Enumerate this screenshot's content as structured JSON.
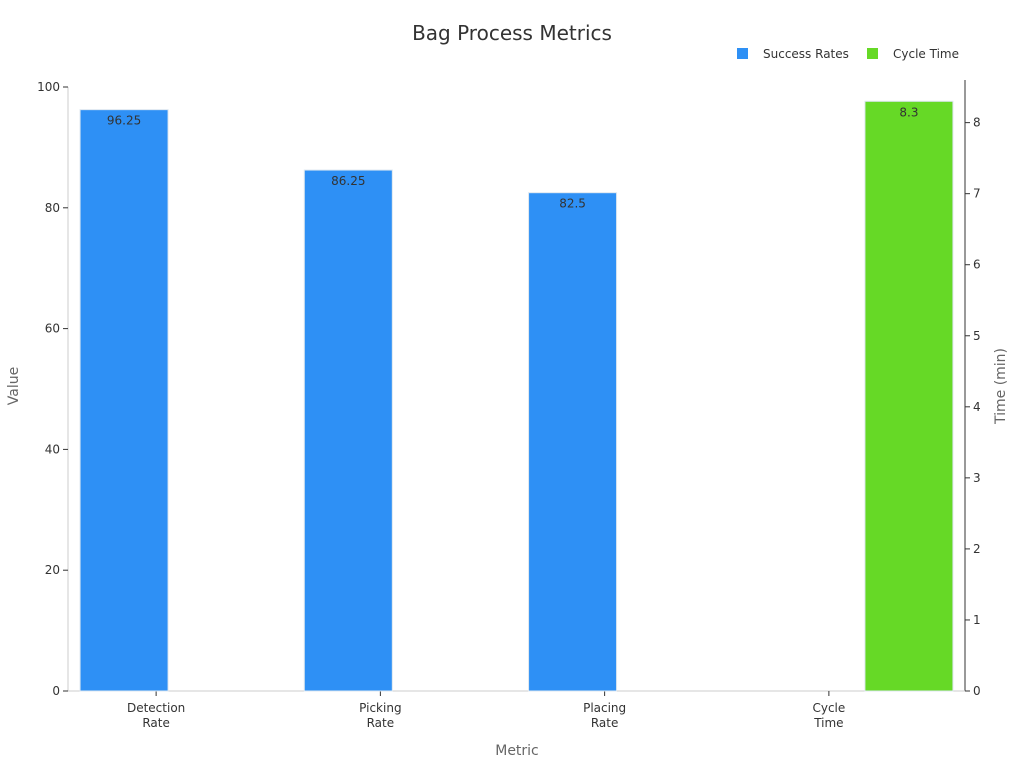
{
  "chart_data": {
    "type": "bar",
    "title": "Bag Process Metrics",
    "xlabel": "Metric",
    "ylabel": "Value",
    "y2label": "Time (min)",
    "ylim": [
      0,
      100
    ],
    "y2lim": [
      0,
      8.6
    ],
    "yticks": [
      0,
      20,
      40,
      60,
      80,
      100
    ],
    "y2ticks": [
      0,
      1,
      2,
      3,
      4,
      5,
      6,
      7,
      8
    ],
    "categories": [
      [
        "Detection",
        "Rate"
      ],
      [
        "Picking",
        "Rate"
      ],
      [
        "Placing",
        "Rate"
      ],
      [
        "Cycle",
        "Time"
      ]
    ],
    "series": [
      {
        "name": "Success Rates",
        "color": "#2e90f5",
        "axis": "left",
        "values": [
          96.25,
          86.25,
          82.5,
          null
        ]
      },
      {
        "name": "Cycle Time",
        "color": "#66d926",
        "axis": "right",
        "values": [
          null,
          null,
          null,
          8.3
        ]
      }
    ],
    "legend": "top-right",
    "grid": false
  }
}
